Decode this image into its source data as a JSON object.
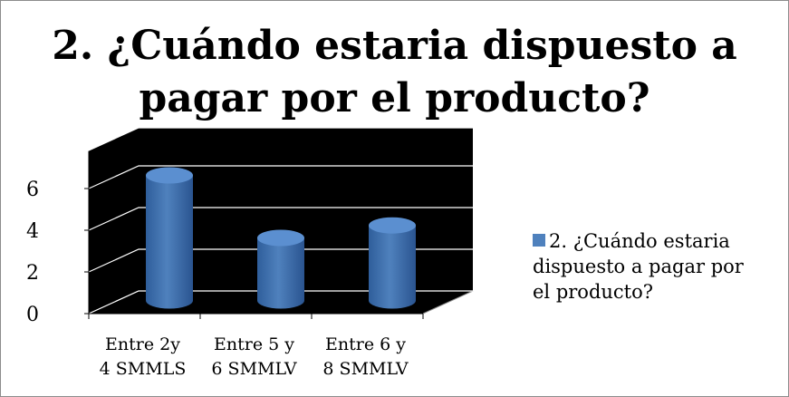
{
  "chart_data": {
    "type": "bar",
    "title_lines": [
      "2. ¿Cuándo estaria dispuesto a",
      "pagar por el producto?"
    ],
    "categories": [
      [
        "Entre 2y",
        "4 SMMLS"
      ],
      [
        "Entre 5 y",
        "6 SMMLV"
      ],
      [
        "Entre 6 y",
        "8 SMMLV"
      ]
    ],
    "series": [
      {
        "name": "2. ¿Cuándo estaria dispuesto a pagar por el producto?",
        "values": [
          6,
          3,
          3.6
        ],
        "color": "#4f81bd"
      }
    ],
    "y_ticks": [
      "0",
      "2",
      "4",
      "6"
    ],
    "ylim": [
      0,
      6
    ],
    "legend_position": "right",
    "grid": true,
    "style": "3d-cylinder",
    "wall_color": "#000000",
    "gridline_color": "#ffffff"
  },
  "legend": {
    "lines": [
      "2. ¿Cuándo estaria",
      "dispuesto a pagar por",
      "el producto?"
    ]
  }
}
